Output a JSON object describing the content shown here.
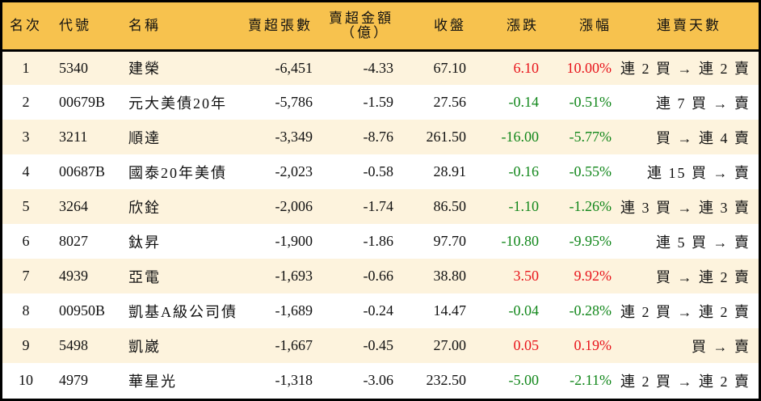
{
  "header": {
    "rank": "名次",
    "code": "代號",
    "name": "名稱",
    "net_sell_lots": "賣超張數",
    "net_sell_amount_line1": "賣超金額",
    "net_sell_amount_line2": "（億）",
    "close": "收盤",
    "change": "漲跌",
    "change_pct": "漲幅",
    "streak": "連賣天數"
  },
  "colors": {
    "header_bg": "#F7C24E",
    "row_odd_bg": "#FDF3DD",
    "row_even_bg": "#FFFFFF",
    "up": "#E8141B",
    "down": "#12871B"
  },
  "rows": [
    {
      "rank": "1",
      "code": "5340",
      "name": "建榮",
      "lots": "-6,451",
      "amount": "-4.33",
      "close": "67.10",
      "change": "6.10",
      "pct": "10.00%",
      "dir": "up",
      "streak": "連 2 買 → 連 2 賣"
    },
    {
      "rank": "2",
      "code": "00679B",
      "name": "元大美債20年",
      "lots": "-5,786",
      "amount": "-1.59",
      "close": "27.56",
      "change": "-0.14",
      "pct": "-0.51%",
      "dir": "down",
      "streak": "連 7 買 → 賣"
    },
    {
      "rank": "3",
      "code": "3211",
      "name": "順達",
      "lots": "-3,349",
      "amount": "-8.76",
      "close": "261.50",
      "change": "-16.00",
      "pct": "-5.77%",
      "dir": "down",
      "streak": "買 → 連 4 賣"
    },
    {
      "rank": "4",
      "code": "00687B",
      "name": "國泰20年美債",
      "lots": "-2,023",
      "amount": "-0.58",
      "close": "28.91",
      "change": "-0.16",
      "pct": "-0.55%",
      "dir": "down",
      "streak": "連 15 買 → 賣"
    },
    {
      "rank": "5",
      "code": "3264",
      "name": "欣銓",
      "lots": "-2,006",
      "amount": "-1.74",
      "close": "86.50",
      "change": "-1.10",
      "pct": "-1.26%",
      "dir": "down",
      "streak": "連 3 買 → 連 3 賣"
    },
    {
      "rank": "6",
      "code": "8027",
      "name": "鈦昇",
      "lots": "-1,900",
      "amount": "-1.86",
      "close": "97.70",
      "change": "-10.80",
      "pct": "-9.95%",
      "dir": "down",
      "streak": "連 5 買 → 賣"
    },
    {
      "rank": "7",
      "code": "4939",
      "name": "亞電",
      "lots": "-1,693",
      "amount": "-0.66",
      "close": "38.80",
      "change": "3.50",
      "pct": "9.92%",
      "dir": "up",
      "streak": "買 → 連 2 賣"
    },
    {
      "rank": "8",
      "code": "00950B",
      "name": "凱基A級公司債",
      "lots": "-1,689",
      "amount": "-0.24",
      "close": "14.47",
      "change": "-0.04",
      "pct": "-0.28%",
      "dir": "down",
      "streak": "連 2 買 → 連 2 賣"
    },
    {
      "rank": "9",
      "code": "5498",
      "name": "凱崴",
      "lots": "-1,667",
      "amount": "-0.45",
      "close": "27.00",
      "change": "0.05",
      "pct": "0.19%",
      "dir": "up",
      "streak": "買 → 賣"
    },
    {
      "rank": "10",
      "code": "4979",
      "name": "華星光",
      "lots": "-1,318",
      "amount": "-3.06",
      "close": "232.50",
      "change": "-5.00",
      "pct": "-2.11%",
      "dir": "down",
      "streak": "連 2 買 → 連 2 賣"
    }
  ]
}
